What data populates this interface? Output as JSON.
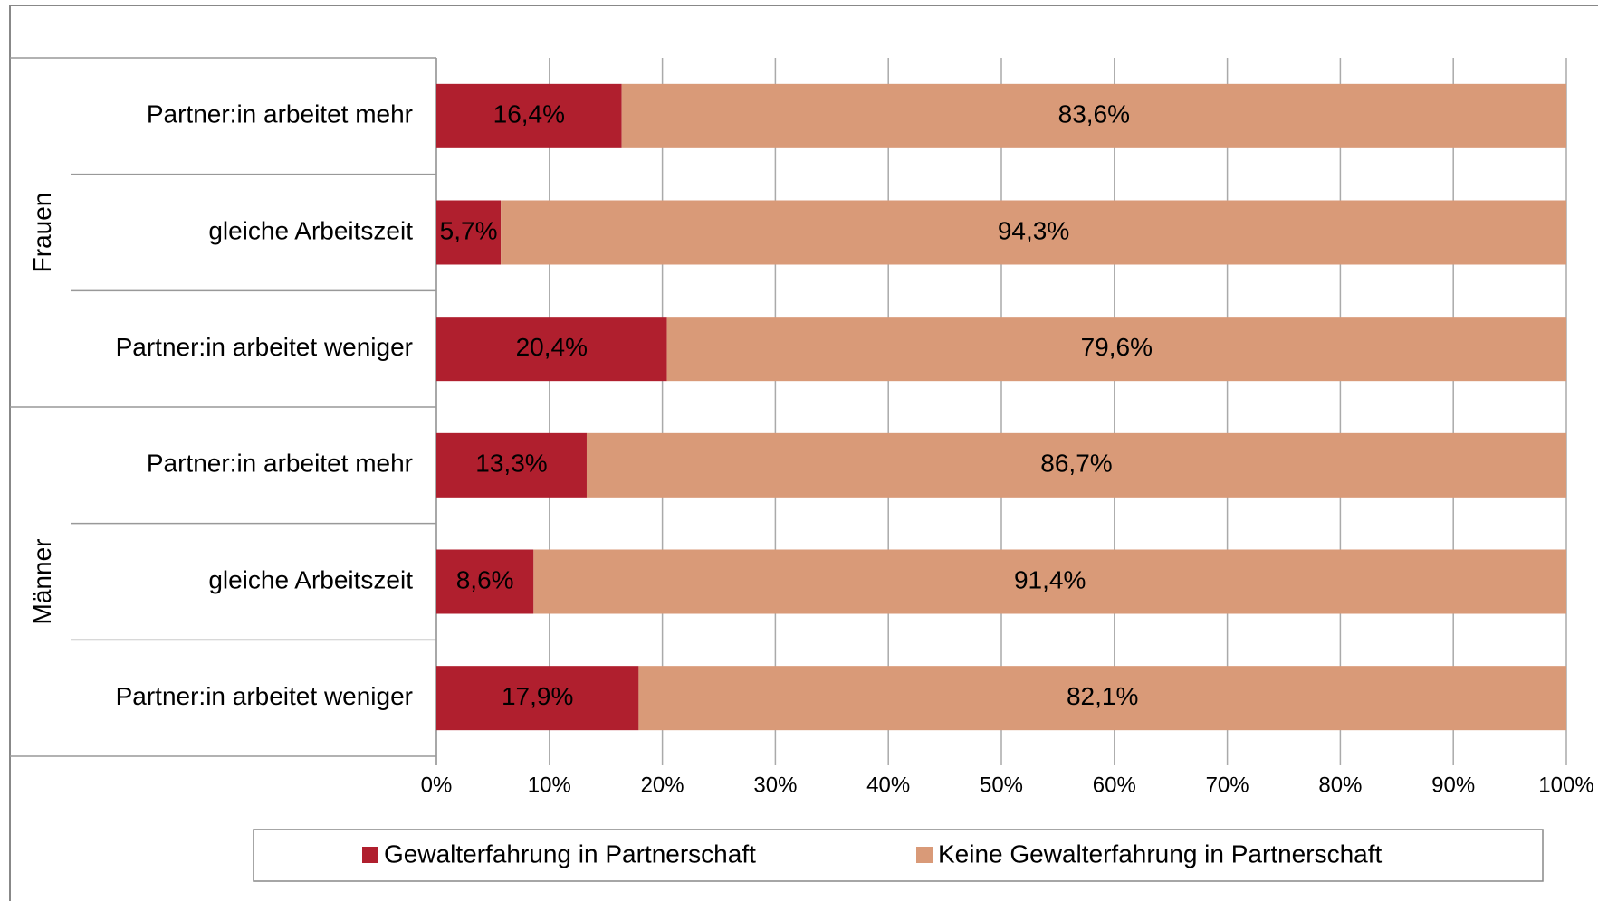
{
  "chart_data": {
    "type": "stacked-bar-horizontal",
    "groups": [
      "Frauen",
      "Männer"
    ],
    "categories": [
      "Partner:in arbeitet mehr",
      "gleiche Arbeitszeit",
      "Partner:in arbeitet weniger",
      "Partner:in arbeitet mehr",
      "gleiche Arbeitszeit",
      "Partner:in arbeitet weniger"
    ],
    "series": [
      {
        "name": "Gewalterfahrung in Partnerschaft",
        "color": "#b01f2e",
        "values": [
          16.4,
          5.7,
          20.4,
          13.3,
          8.6,
          17.9
        ],
        "value_labels": [
          "16,4%",
          "5,7%",
          "20,4%",
          "13,3%",
          "8,6%",
          "17,9%"
        ]
      },
      {
        "name": "Keine Gewalterfahrung in Partnerschaft",
        "color": "#d99a78",
        "values": [
          83.6,
          94.3,
          79.6,
          86.7,
          91.4,
          82.1
        ],
        "value_labels": [
          "83,6%",
          "94,3%",
          "79,6%",
          "86,7%",
          "91,4%",
          "82,1%"
        ]
      }
    ],
    "xlim": [
      0,
      100
    ],
    "xticks": [
      {
        "value": 0,
        "label": "0%"
      },
      {
        "value": 10,
        "label": "10%"
      },
      {
        "value": 20,
        "label": "20%"
      },
      {
        "value": 30,
        "label": "30%"
      },
      {
        "value": 40,
        "label": "40%"
      },
      {
        "value": 50,
        "label": "50%"
      },
      {
        "value": 60,
        "label": "60%"
      },
      {
        "value": 70,
        "label": "70%"
      },
      {
        "value": 80,
        "label": "80%"
      },
      {
        "value": 90,
        "label": "90%"
      },
      {
        "value": 100,
        "label": "100%"
      }
    ],
    "grid": true,
    "legend": "bottom"
  }
}
